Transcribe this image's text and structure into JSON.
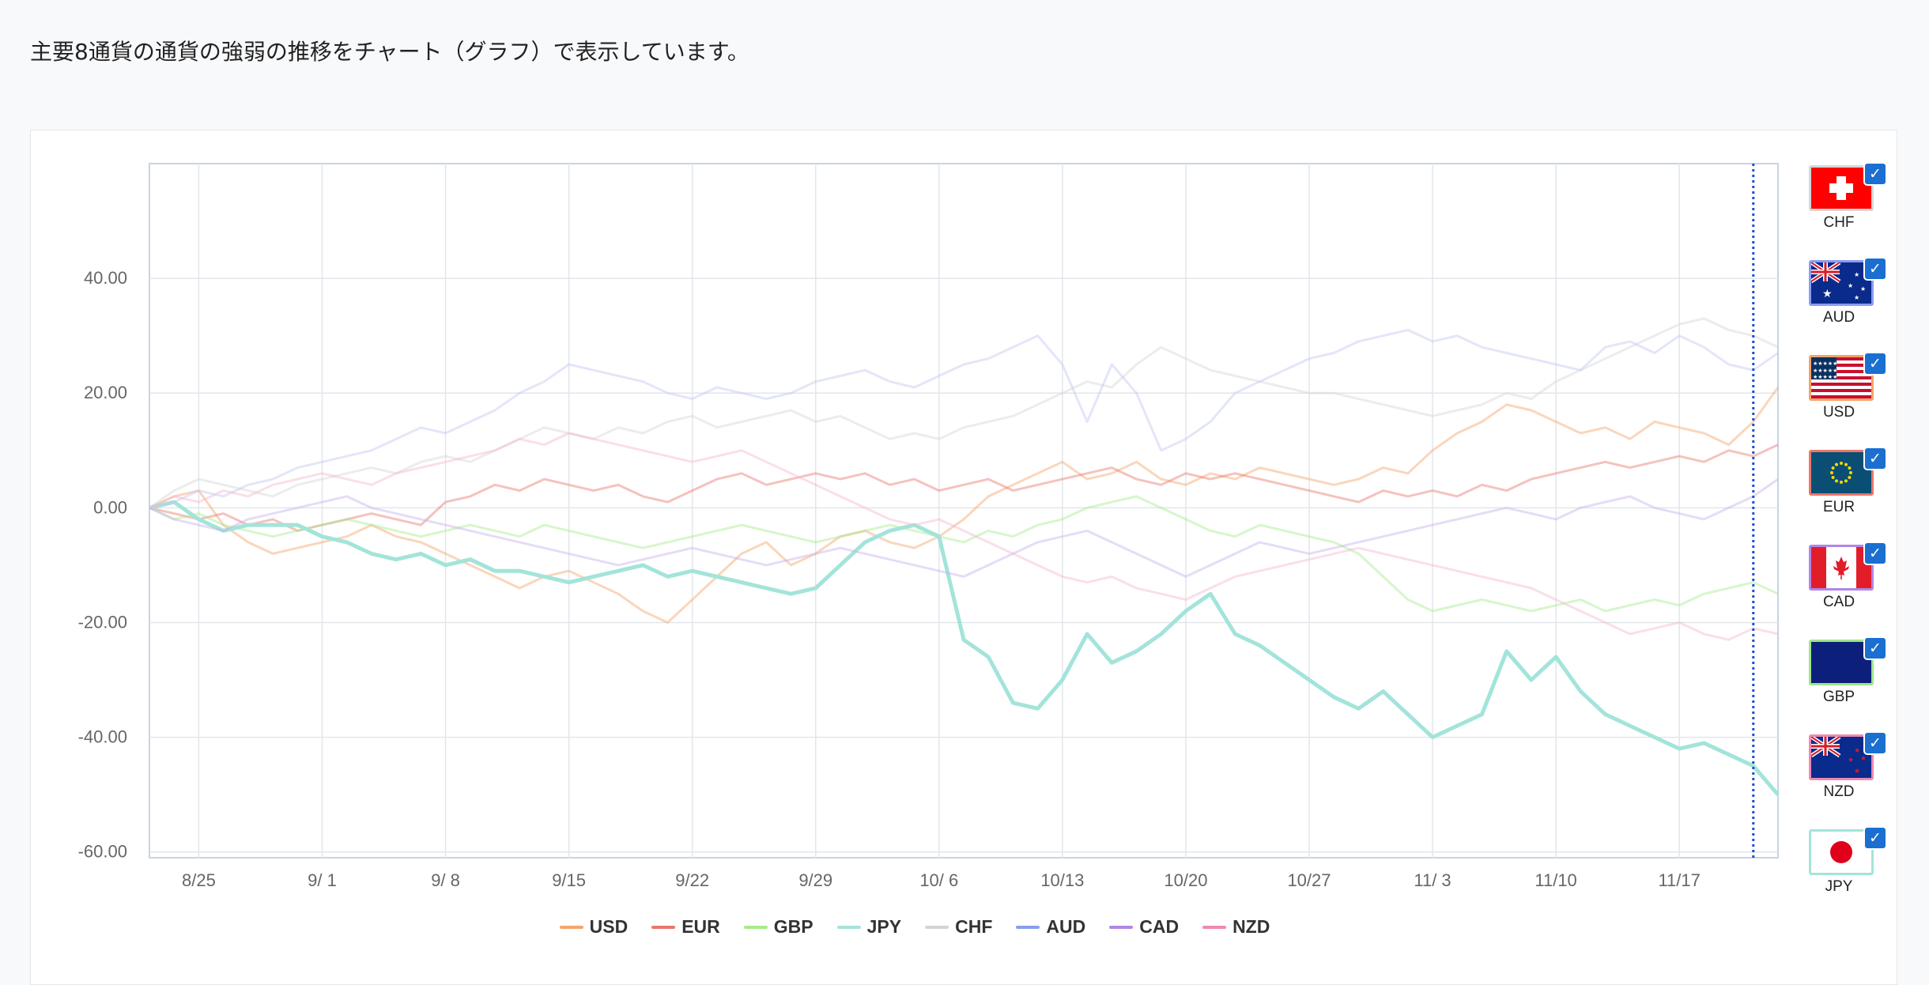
{
  "intro_text": "主要8通貨の通貨の強弱の推移をチャート（グラフ）で表示しています。",
  "chart_data": {
    "type": "line",
    "title": "",
    "xlabel": "",
    "ylabel": "",
    "ylim": [
      -61,
      60
    ],
    "y_ticks": [
      "40.00",
      "20.00",
      "0.00",
      "-20.00",
      "-40.00",
      "-60.00"
    ],
    "x_tick_labels": [
      "8/25",
      "9/ 1",
      "9/ 8",
      "9/15",
      "9/22",
      "9/29",
      "10/ 6",
      "10/13",
      "10/20",
      "10/27",
      "11/ 3",
      "11/10",
      "11/17"
    ],
    "grid": true,
    "legend_position": "bottom",
    "highlighted_series": "JPY",
    "x": [
      "8/21",
      "8/22",
      "8/25",
      "8/26",
      "8/27",
      "8/28",
      "8/29",
      "9/1",
      "9/2",
      "9/3",
      "9/4",
      "9/5",
      "9/8",
      "9/9",
      "9/10",
      "9/11",
      "9/12",
      "9/15",
      "9/16",
      "9/17",
      "9/18",
      "9/19",
      "9/22",
      "9/23",
      "9/24",
      "9/25",
      "9/26",
      "9/29",
      "9/30",
      "10/1",
      "10/2",
      "10/3",
      "10/6",
      "10/7",
      "10/8",
      "10/9",
      "10/10",
      "10/13",
      "10/14",
      "10/15",
      "10/16",
      "10/17",
      "10/20",
      "10/21",
      "10/22",
      "10/23",
      "10/24",
      "10/27",
      "10/28",
      "10/29",
      "10/30",
      "10/31",
      "11/3",
      "11/4",
      "11/5",
      "11/6",
      "11/7",
      "11/10",
      "11/11",
      "11/12",
      "11/13",
      "11/14",
      "11/17",
      "11/18",
      "11/19",
      "11/20",
      "11/21"
    ],
    "series": [
      {
        "name": "USD",
        "color": "#f5a56b",
        "values": [
          0,
          2,
          3,
          -3,
          -6,
          -8,
          -7,
          -6,
          -5,
          -3,
          -5,
          -6,
          -8,
          -10,
          -12,
          -14,
          -12,
          -11,
          -13,
          -15,
          -18,
          -20,
          -16,
          -12,
          -8,
          -6,
          -10,
          -8,
          -5,
          -4,
          -6,
          -7,
          -5,
          -2,
          2,
          4,
          6,
          8,
          5,
          6,
          8,
          5,
          4,
          6,
          5,
          7,
          6,
          5,
          4,
          5,
          7,
          6,
          10,
          13,
          15,
          18,
          17,
          15,
          13,
          14,
          12,
          15,
          14,
          13,
          11,
          15,
          21
        ]
      },
      {
        "name": "EUR",
        "color": "#e8786c",
        "values": [
          0,
          -1,
          -2,
          -1,
          -3,
          -2,
          -4,
          -3,
          -2,
          -1,
          -2,
          -3,
          1,
          2,
          4,
          3,
          5,
          4,
          3,
          4,
          2,
          1,
          3,
          5,
          6,
          4,
          5,
          6,
          5,
          6,
          4,
          5,
          3,
          4,
          5,
          3,
          4,
          5,
          6,
          7,
          5,
          4,
          6,
          5,
          6,
          5,
          4,
          3,
          2,
          1,
          3,
          2,
          3,
          2,
          4,
          3,
          5,
          6,
          7,
          8,
          7,
          8,
          9,
          8,
          10,
          9,
          11
        ]
      },
      {
        "name": "GBP",
        "color": "#a6ec8a",
        "values": [
          0,
          -2,
          -1,
          -3,
          -4,
          -5,
          -4,
          -3,
          -2,
          -3,
          -4,
          -5,
          -4,
          -3,
          -4,
          -5,
          -3,
          -4,
          -5,
          -6,
          -7,
          -6,
          -5,
          -4,
          -3,
          -4,
          -5,
          -6,
          -5,
          -4,
          -3,
          -4,
          -5,
          -6,
          -4,
          -5,
          -3,
          -2,
          0,
          1,
          2,
          0,
          -2,
          -4,
          -5,
          -3,
          -4,
          -5,
          -6,
          -8,
          -12,
          -16,
          -18,
          -17,
          -16,
          -17,
          -18,
          -17,
          -16,
          -18,
          -17,
          -16,
          -17,
          -15,
          -14,
          -13,
          -15
        ]
      },
      {
        "name": "JPY",
        "color": "#a3e4da",
        "values": [
          0,
          1,
          -2,
          -4,
          -3,
          -3,
          -3,
          -5,
          -6,
          -8,
          -9,
          -8,
          -10,
          -9,
          -11,
          -11,
          -12,
          -13,
          -12,
          -11,
          -10,
          -12,
          -11,
          -12,
          -13,
          -14,
          -15,
          -14,
          -10,
          -6,
          -4,
          -3,
          -5,
          -23,
          -26,
          -34,
          -35,
          -30,
          -22,
          -27,
          -25,
          -22,
          -18,
          -15,
          -22,
          -24,
          -27,
          -30,
          -33,
          -35,
          -32,
          -36,
          -40,
          -38,
          -36,
          -25,
          -30,
          -26,
          -32,
          -36,
          -38,
          -40,
          -42,
          -41,
          -43,
          -45,
          -50
        ]
      },
      {
        "name": "CHF",
        "color": "#d4d4d4",
        "values": [
          0,
          3,
          5,
          4,
          3,
          2,
          4,
          5,
          6,
          7,
          6,
          8,
          9,
          8,
          10,
          12,
          14,
          13,
          12,
          14,
          13,
          15,
          16,
          14,
          15,
          16,
          17,
          15,
          16,
          14,
          12,
          13,
          12,
          14,
          15,
          16,
          18,
          20,
          22,
          21,
          25,
          28,
          26,
          24,
          23,
          22,
          21,
          20,
          20,
          19,
          18,
          17,
          16,
          17,
          18,
          20,
          19,
          22,
          24,
          26,
          28,
          30,
          32,
          33,
          31,
          30,
          28
        ]
      },
      {
        "name": "AUD",
        "color": "#c2c8f2",
        "values": [
          0,
          1,
          3,
          2,
          4,
          5,
          7,
          8,
          9,
          10,
          12,
          14,
          13,
          15,
          17,
          20,
          22,
          25,
          24,
          23,
          22,
          20,
          19,
          21,
          20,
          19,
          20,
          22,
          23,
          24,
          22,
          21,
          23,
          25,
          26,
          28,
          30,
          25,
          15,
          25,
          20,
          10,
          12,
          15,
          20,
          22,
          24,
          26,
          27,
          29,
          30,
          31,
          29,
          30,
          28,
          27,
          26,
          25,
          24,
          28,
          29,
          27,
          30,
          28,
          25,
          24,
          27
        ]
      },
      {
        "name": "CAD",
        "color": "#c8b2ea",
        "values": [
          0,
          -2,
          -3,
          -4,
          -2,
          -1,
          0,
          1,
          2,
          0,
          -1,
          -2,
          -3,
          -4,
          -5,
          -6,
          -7,
          -8,
          -9,
          -10,
          -9,
          -8,
          -7,
          -8,
          -9,
          -10,
          -9,
          -8,
          -7,
          -8,
          -9,
          -10,
          -11,
          -12,
          -10,
          -8,
          -6,
          -5,
          -4,
          -6,
          -8,
          -10,
          -12,
          -10,
          -8,
          -6,
          -7,
          -8,
          -7,
          -6,
          -5,
          -4,
          -3,
          -2,
          -1,
          0,
          -1,
          -2,
          0,
          1,
          2,
          0,
          -1,
          -2,
          0,
          2,
          5
        ]
      },
      {
        "name": "NZD",
        "color": "#f4b8cd",
        "values": [
          0,
          2,
          1,
          3,
          2,
          4,
          5,
          6,
          5,
          4,
          6,
          7,
          8,
          9,
          10,
          12,
          11,
          13,
          12,
          11,
          10,
          9,
          8,
          9,
          10,
          8,
          6,
          4,
          2,
          0,
          -2,
          -3,
          -2,
          -4,
          -6,
          -8,
          -10,
          -12,
          -13,
          -12,
          -14,
          -15,
          -16,
          -14,
          -12,
          -11,
          -10,
          -9,
          -8,
          -7,
          -8,
          -9,
          -10,
          -11,
          -12,
          -13,
          -14,
          -16,
          -18,
          -20,
          -22,
          -21,
          -20,
          -22,
          -23,
          -21,
          -22
        ]
      }
    ]
  },
  "flags": [
    {
      "code": "CHF",
      "label": "CHF",
      "border": "#d6d6d6",
      "checked": "✓"
    },
    {
      "code": "AUD",
      "label": "AUD",
      "border": "#8b9cf0",
      "checked": "✓"
    },
    {
      "code": "USD",
      "label": "USD",
      "border": "#f3a36b",
      "checked": "✓"
    },
    {
      "code": "EUR",
      "label": "EUR",
      "border": "#e8786c",
      "checked": "✓"
    },
    {
      "code": "CAD",
      "label": "CAD",
      "border": "#b186e6",
      "checked": "✓"
    },
    {
      "code": "GBP",
      "label": "GBP",
      "border": "#9ee58a",
      "checked": "✓"
    },
    {
      "code": "NZD",
      "label": "NZD",
      "border": "#ef88b4",
      "checked": "✓"
    },
    {
      "code": "JPY",
      "label": "JPY",
      "border": "#a3e4da",
      "checked": "✓"
    }
  ],
  "legend": [
    {
      "name": "USD",
      "color": "#f5a56b"
    },
    {
      "name": "EUR",
      "color": "#e8786c"
    },
    {
      "name": "GBP",
      "color": "#a6ec8a"
    },
    {
      "name": "JPY",
      "color": "#a3e4da"
    },
    {
      "name": "CHF",
      "color": "#d4d4d4"
    },
    {
      "name": "AUD",
      "color": "#8b9cf0"
    },
    {
      "name": "CAD",
      "color": "#b186e6"
    },
    {
      "name": "NZD",
      "color": "#ef88b4"
    }
  ]
}
